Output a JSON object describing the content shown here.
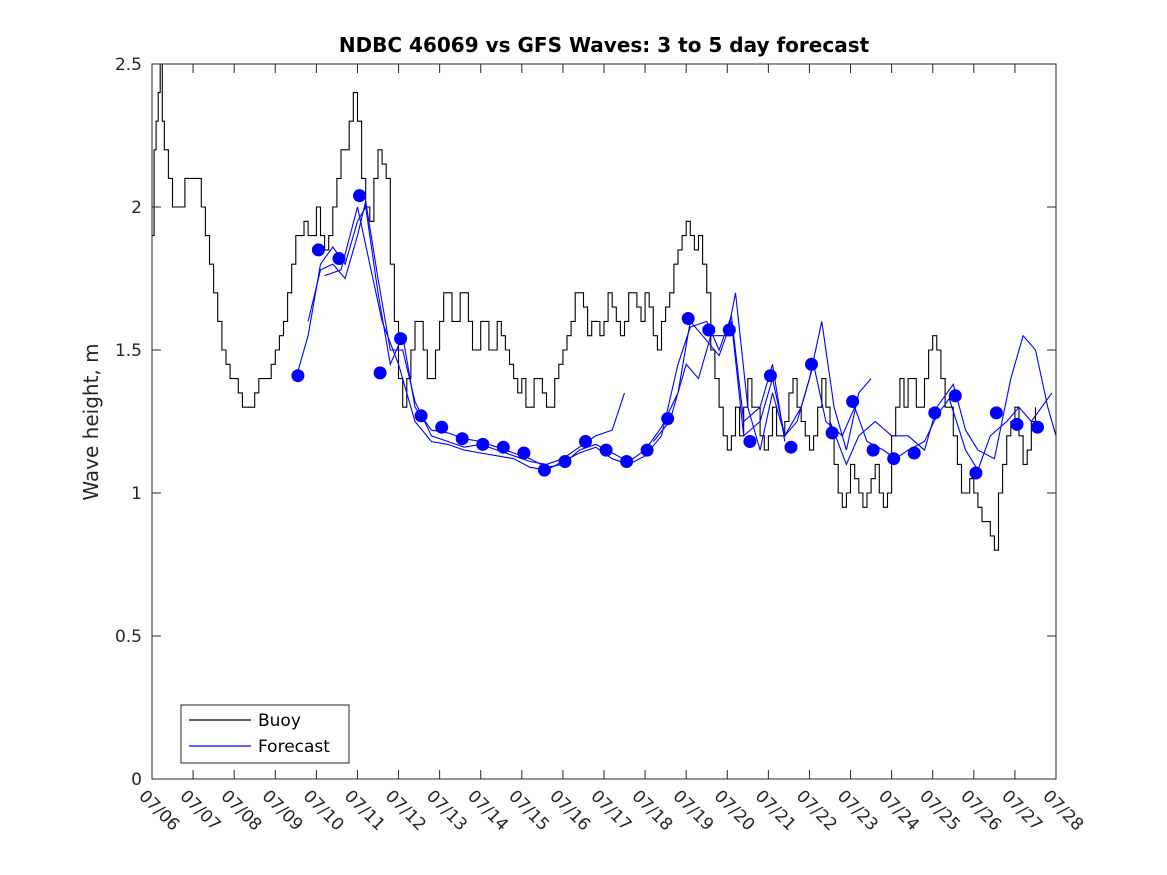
{
  "chart_data": {
    "type": "line",
    "title": "NDBC 46069 vs GFS Waves: 3 to 5 day forecast",
    "xlabel": "",
    "ylabel": "Wave height, m",
    "x_ticks": [
      "07/06",
      "07/07",
      "07/08",
      "07/09",
      "07/10",
      "07/11",
      "07/12",
      "07/13",
      "07/14",
      "07/15",
      "07/16",
      "07/17",
      "07/18",
      "07/19",
      "07/20",
      "07/21",
      "07/22",
      "07/23",
      "07/24",
      "07/25",
      "07/26",
      "07/27",
      "07/28"
    ],
    "y_ticks": [
      "0",
      "0.5",
      "1",
      "1.5",
      "2",
      "2.5"
    ],
    "xlim_days": [
      0,
      22
    ],
    "ylim": [
      0,
      2.5
    ],
    "grid": false,
    "legend_location": "bottom-left",
    "legend": [
      "Buoy",
      "Forecast"
    ],
    "colors": {
      "buoy": "#000000",
      "forecast": "#0000ff"
    },
    "buoy": [
      [
        0.0,
        1.9
      ],
      [
        0.05,
        2.2
      ],
      [
        0.1,
        2.3
      ],
      [
        0.15,
        2.4
      ],
      [
        0.2,
        2.5
      ],
      [
        0.25,
        2.3
      ],
      [
        0.3,
        2.2
      ],
      [
        0.4,
        2.1
      ],
      [
        0.5,
        2.0
      ],
      [
        0.6,
        2.0
      ],
      [
        0.7,
        2.0
      ],
      [
        0.8,
        2.1
      ],
      [
        0.9,
        2.1
      ],
      [
        1.0,
        2.1
      ],
      [
        1.1,
        2.1
      ],
      [
        1.2,
        2.0
      ],
      [
        1.3,
        1.9
      ],
      [
        1.4,
        1.8
      ],
      [
        1.5,
        1.7
      ],
      [
        1.6,
        1.6
      ],
      [
        1.7,
        1.5
      ],
      [
        1.8,
        1.45
      ],
      [
        1.9,
        1.4
      ],
      [
        2.0,
        1.4
      ],
      [
        2.1,
        1.35
      ],
      [
        2.2,
        1.3
      ],
      [
        2.3,
        1.3
      ],
      [
        2.4,
        1.3
      ],
      [
        2.5,
        1.35
      ],
      [
        2.6,
        1.4
      ],
      [
        2.7,
        1.4
      ],
      [
        2.8,
        1.4
      ],
      [
        2.9,
        1.45
      ],
      [
        3.0,
        1.5
      ],
      [
        3.1,
        1.55
      ],
      [
        3.2,
        1.6
      ],
      [
        3.3,
        1.7
      ],
      [
        3.4,
        1.8
      ],
      [
        3.5,
        1.9
      ],
      [
        3.6,
        1.9
      ],
      [
        3.7,
        1.95
      ],
      [
        3.8,
        1.9
      ],
      [
        3.9,
        1.9
      ],
      [
        4.0,
        2.0
      ],
      [
        4.1,
        1.9
      ],
      [
        4.2,
        1.85
      ],
      [
        4.3,
        1.9
      ],
      [
        4.4,
        2.0
      ],
      [
        4.5,
        2.1
      ],
      [
        4.6,
        2.2
      ],
      [
        4.7,
        2.2
      ],
      [
        4.8,
        2.3
      ],
      [
        4.9,
        2.4
      ],
      [
        5.0,
        2.3
      ],
      [
        5.1,
        2.1
      ],
      [
        5.2,
        2.0
      ],
      [
        5.3,
        1.95
      ],
      [
        5.4,
        2.1
      ],
      [
        5.5,
        2.2
      ],
      [
        5.6,
        2.15
      ],
      [
        5.7,
        2.1
      ],
      [
        5.8,
        1.8
      ],
      [
        5.9,
        1.6
      ],
      [
        6.0,
        1.4
      ],
      [
        6.1,
        1.3
      ],
      [
        6.2,
        1.4
      ],
      [
        6.3,
        1.5
      ],
      [
        6.4,
        1.6
      ],
      [
        6.5,
        1.6
      ],
      [
        6.6,
        1.5
      ],
      [
        6.7,
        1.4
      ],
      [
        6.8,
        1.4
      ],
      [
        6.9,
        1.5
      ],
      [
        7.0,
        1.6
      ],
      [
        7.1,
        1.7
      ],
      [
        7.2,
        1.7
      ],
      [
        7.3,
        1.6
      ],
      [
        7.4,
        1.6
      ],
      [
        7.5,
        1.7
      ],
      [
        7.6,
        1.7
      ],
      [
        7.7,
        1.6
      ],
      [
        7.8,
        1.5
      ],
      [
        7.9,
        1.5
      ],
      [
        8.0,
        1.6
      ],
      [
        8.1,
        1.6
      ],
      [
        8.2,
        1.5
      ],
      [
        8.3,
        1.5
      ],
      [
        8.4,
        1.6
      ],
      [
        8.5,
        1.55
      ],
      [
        8.6,
        1.5
      ],
      [
        8.7,
        1.45
      ],
      [
        8.8,
        1.4
      ],
      [
        8.9,
        1.35
      ],
      [
        9.0,
        1.4
      ],
      [
        9.1,
        1.3
      ],
      [
        9.2,
        1.3
      ],
      [
        9.3,
        1.4
      ],
      [
        9.4,
        1.4
      ],
      [
        9.5,
        1.35
      ],
      [
        9.6,
        1.3
      ],
      [
        9.7,
        1.3
      ],
      [
        9.8,
        1.4
      ],
      [
        9.9,
        1.45
      ],
      [
        10.0,
        1.5
      ],
      [
        10.1,
        1.55
      ],
      [
        10.2,
        1.6
      ],
      [
        10.3,
        1.7
      ],
      [
        10.4,
        1.7
      ],
      [
        10.5,
        1.65
      ],
      [
        10.6,
        1.55
      ],
      [
        10.7,
        1.6
      ],
      [
        10.8,
        1.6
      ],
      [
        10.9,
        1.55
      ],
      [
        11.0,
        1.6
      ],
      [
        11.1,
        1.7
      ],
      [
        11.2,
        1.65
      ],
      [
        11.3,
        1.6
      ],
      [
        11.4,
        1.55
      ],
      [
        11.5,
        1.6
      ],
      [
        11.6,
        1.7
      ],
      [
        11.7,
        1.7
      ],
      [
        11.8,
        1.65
      ],
      [
        11.9,
        1.6
      ],
      [
        12.0,
        1.7
      ],
      [
        12.1,
        1.65
      ],
      [
        12.2,
        1.55
      ],
      [
        12.3,
        1.5
      ],
      [
        12.4,
        1.6
      ],
      [
        12.5,
        1.65
      ],
      [
        12.6,
        1.7
      ],
      [
        12.7,
        1.8
      ],
      [
        12.8,
        1.85
      ],
      [
        12.9,
        1.9
      ],
      [
        13.0,
        1.95
      ],
      [
        13.1,
        1.9
      ],
      [
        13.2,
        1.85
      ],
      [
        13.3,
        1.9
      ],
      [
        13.4,
        1.8
      ],
      [
        13.5,
        1.7
      ],
      [
        13.6,
        1.5
      ],
      [
        13.7,
        1.4
      ],
      [
        13.8,
        1.3
      ],
      [
        13.9,
        1.2
      ],
      [
        14.0,
        1.15
      ],
      [
        14.1,
        1.2
      ],
      [
        14.2,
        1.3
      ],
      [
        14.3,
        1.2
      ],
      [
        14.4,
        1.3
      ],
      [
        14.5,
        1.4
      ],
      [
        14.6,
        1.3
      ],
      [
        14.7,
        1.3
      ],
      [
        14.8,
        1.2
      ],
      [
        14.9,
        1.15
      ],
      [
        15.0,
        1.2
      ],
      [
        15.1,
        1.3
      ],
      [
        15.2,
        1.2
      ],
      [
        15.3,
        1.2
      ],
      [
        15.4,
        1.25
      ],
      [
        15.5,
        1.35
      ],
      [
        15.6,
        1.4
      ],
      [
        15.7,
        1.3
      ],
      [
        15.8,
        1.25
      ],
      [
        15.9,
        1.2
      ],
      [
        16.0,
        1.15
      ],
      [
        16.1,
        1.2
      ],
      [
        16.2,
        1.3
      ],
      [
        16.3,
        1.4
      ],
      [
        16.4,
        1.3
      ],
      [
        16.5,
        1.2
      ],
      [
        16.6,
        1.1
      ],
      [
        16.7,
        1.0
      ],
      [
        16.8,
        0.95
      ],
      [
        16.9,
        1.0
      ],
      [
        17.0,
        1.1
      ],
      [
        17.1,
        1.05
      ],
      [
        17.2,
        1.0
      ],
      [
        17.3,
        0.95
      ],
      [
        17.4,
        1.0
      ],
      [
        17.5,
        1.05
      ],
      [
        17.6,
        1.1
      ],
      [
        17.7,
        1.0
      ],
      [
        17.8,
        0.95
      ],
      [
        17.9,
        1.0
      ],
      [
        18.0,
        1.2
      ],
      [
        18.1,
        1.3
      ],
      [
        18.2,
        1.4
      ],
      [
        18.3,
        1.3
      ],
      [
        18.4,
        1.4
      ],
      [
        18.5,
        1.4
      ],
      [
        18.6,
        1.3
      ],
      [
        18.7,
        1.3
      ],
      [
        18.8,
        1.4
      ],
      [
        18.9,
        1.5
      ],
      [
        19.0,
        1.55
      ],
      [
        19.1,
        1.5
      ],
      [
        19.2,
        1.4
      ],
      [
        19.3,
        1.3
      ],
      [
        19.4,
        1.3
      ],
      [
        19.5,
        1.2
      ],
      [
        19.6,
        1.1
      ],
      [
        19.7,
        1.0
      ],
      [
        19.8,
        1.0
      ],
      [
        19.9,
        1.05
      ],
      [
        20.0,
        1.0
      ],
      [
        20.1,
        0.95
      ],
      [
        20.2,
        0.9
      ],
      [
        20.3,
        0.9
      ],
      [
        20.4,
        0.85
      ],
      [
        20.5,
        0.8
      ],
      [
        20.6,
        1.0
      ],
      [
        20.7,
        1.1
      ],
      [
        20.8,
        1.2
      ],
      [
        20.9,
        1.25
      ],
      [
        21.0,
        1.3
      ],
      [
        21.1,
        1.2
      ],
      [
        21.2,
        1.1
      ],
      [
        21.3,
        1.15
      ],
      [
        21.4,
        1.25
      ],
      [
        21.5,
        1.3
      ]
    ],
    "forecast_markers": [
      [
        3.55,
        1.41
      ],
      [
        4.05,
        1.85
      ],
      [
        4.55,
        1.82
      ],
      [
        5.05,
        2.04
      ],
      [
        5.55,
        1.42
      ],
      [
        6.05,
        1.54
      ],
      [
        6.55,
        1.27
      ],
      [
        7.05,
        1.23
      ],
      [
        7.55,
        1.19
      ],
      [
        8.05,
        1.17
      ],
      [
        8.55,
        1.16
      ],
      [
        9.05,
        1.14
      ],
      [
        9.55,
        1.08
      ],
      [
        10.05,
        1.11
      ],
      [
        10.55,
        1.18
      ],
      [
        11.05,
        1.15
      ],
      [
        11.55,
        1.11
      ],
      [
        12.05,
        1.15
      ],
      [
        12.55,
        1.26
      ],
      [
        13.05,
        1.61
      ],
      [
        13.55,
        1.57
      ],
      [
        14.05,
        1.57
      ],
      [
        14.55,
        1.18
      ],
      [
        15.05,
        1.41
      ],
      [
        15.55,
        1.16
      ],
      [
        16.05,
        1.45
      ],
      [
        16.55,
        1.21
      ],
      [
        17.05,
        1.32
      ],
      [
        17.55,
        1.15
      ],
      [
        18.05,
        1.12
      ],
      [
        18.55,
        1.14
      ],
      [
        19.05,
        1.28
      ],
      [
        19.55,
        1.34
      ],
      [
        20.05,
        1.07
      ],
      [
        20.55,
        1.28
      ],
      [
        21.05,
        1.24
      ],
      [
        21.55,
        1.23
      ]
    ],
    "forecast_lines": [
      [
        [
          3.5,
          1.4
        ],
        [
          3.8,
          1.55
        ],
        [
          4.1,
          1.8
        ],
        [
          4.4,
          1.86
        ],
        [
          4.7,
          1.8
        ],
        [
          5.0,
          1.95
        ],
        [
          5.2,
          2.0
        ],
        [
          5.5,
          1.7
        ],
        [
          5.8,
          1.45
        ],
        [
          6.1,
          1.55
        ],
        [
          6.4,
          1.3
        ],
        [
          6.8,
          1.22
        ],
        [
          7.2,
          1.21
        ],
        [
          7.6,
          1.19
        ],
        [
          8.0,
          1.18
        ],
        [
          8.4,
          1.16
        ],
        [
          8.8,
          1.14
        ],
        [
          9.2,
          1.12
        ],
        [
          9.6,
          1.09
        ],
        [
          10.0,
          1.1
        ],
        [
          10.4,
          1.15
        ],
        [
          10.8,
          1.17
        ],
        [
          11.2,
          1.14
        ],
        [
          11.6,
          1.11
        ],
        [
          12.0,
          1.15
        ],
        [
          12.4,
          1.23
        ],
        [
          12.8,
          1.35
        ],
        [
          13.1,
          1.6
        ],
        [
          13.4,
          1.55
        ],
        [
          13.8,
          1.48
        ],
        [
          14.1,
          1.6
        ],
        [
          14.4,
          1.2
        ],
        [
          14.8,
          1.25
        ],
        [
          15.1,
          1.4
        ],
        [
          15.4,
          1.2
        ],
        [
          15.8,
          1.3
        ],
        [
          16.1,
          1.45
        ],
        [
          16.4,
          1.25
        ],
        [
          16.8,
          1.2
        ],
        [
          17.1,
          1.3
        ],
        [
          17.4,
          1.18
        ],
        [
          17.8,
          1.15
        ],
        [
          18.1,
          1.12
        ],
        [
          18.4,
          1.15
        ],
        [
          18.8,
          1.18
        ],
        [
          19.1,
          1.27
        ],
        [
          19.4,
          1.33
        ],
        [
          19.8,
          1.15
        ],
        [
          20.1,
          1.08
        ],
        [
          20.4,
          1.2
        ],
        [
          20.8,
          1.25
        ],
        [
          21.1,
          1.3
        ],
        [
          21.4,
          1.25
        ],
        [
          21.9,
          1.35
        ]
      ],
      [
        [
          3.8,
          1.6
        ],
        [
          4.1,
          1.78
        ],
        [
          4.4,
          1.8
        ],
        [
          4.7,
          1.75
        ],
        [
          5.0,
          1.9
        ],
        [
          5.2,
          2.02
        ],
        [
          5.5,
          1.75
        ],
        [
          5.8,
          1.5
        ],
        [
          6.1,
          1.5
        ],
        [
          6.4,
          1.32
        ],
        [
          6.8,
          1.2
        ],
        [
          7.2,
          1.18
        ],
        [
          7.6,
          1.16
        ],
        [
          8.0,
          1.17
        ],
        [
          8.4,
          1.15
        ],
        [
          8.8,
          1.13
        ],
        [
          9.2,
          1.11
        ],
        [
          9.6,
          1.1
        ],
        [
          10.0,
          1.12
        ],
        [
          10.4,
          1.16
        ],
        [
          10.8,
          1.2
        ],
        [
          11.2,
          1.22
        ],
        [
          11.5,
          1.35
        ]
      ],
      [
        [
          4.2,
          1.76
        ],
        [
          4.6,
          1.78
        ],
        [
          5.0,
          2.0
        ],
        [
          5.3,
          1.8
        ],
        [
          5.6,
          1.6
        ],
        [
          6.0,
          1.45
        ],
        [
          6.4,
          1.25
        ],
        [
          6.8,
          1.18
        ],
        [
          7.2,
          1.17
        ],
        [
          7.6,
          1.15
        ],
        [
          8.0,
          1.14
        ],
        [
          8.4,
          1.13
        ],
        [
          8.8,
          1.12
        ],
        [
          9.2,
          1.09
        ],
        [
          9.6,
          1.08
        ],
        [
          10.0,
          1.11
        ],
        [
          10.4,
          1.14
        ],
        [
          10.8,
          1.16
        ],
        [
          11.2,
          1.12
        ],
        [
          11.6,
          1.1
        ],
        [
          12.0,
          1.13
        ],
        [
          12.4,
          1.2
        ],
        [
          12.8,
          1.45
        ],
        [
          13.1,
          1.58
        ],
        [
          13.5,
          1.6
        ],
        [
          13.8,
          1.5
        ],
        [
          14.1,
          1.62
        ],
        [
          14.4,
          1.25
        ],
        [
          14.8,
          1.3
        ],
        [
          15.1,
          1.45
        ],
        [
          15.4,
          1.18
        ]
      ],
      [
        [
          12.2,
          1.18
        ],
        [
          12.6,
          1.25
        ],
        [
          13.0,
          1.45
        ],
        [
          13.3,
          1.4
        ],
        [
          13.6,
          1.55
        ],
        [
          14.0,
          1.55
        ],
        [
          14.2,
          1.7
        ],
        [
          14.5,
          1.3
        ],
        [
          14.8,
          1.15
        ],
        [
          15.1,
          1.35
        ],
        [
          15.4,
          1.2
        ],
        [
          15.7,
          1.25
        ],
        [
          16.0,
          1.4
        ],
        [
          16.3,
          1.6
        ],
        [
          16.6,
          1.3
        ],
        [
          16.9,
          1.15
        ],
        [
          17.2,
          1.35
        ],
        [
          17.5,
          1.4
        ]
      ],
      [
        [
          16.5,
          1.25
        ],
        [
          16.9,
          1.1
        ],
        [
          17.2,
          1.2
        ],
        [
          17.6,
          1.25
        ],
        [
          18.0,
          1.2
        ],
        [
          18.4,
          1.2
        ],
        [
          18.8,
          1.15
        ],
        [
          19.1,
          1.3
        ],
        [
          19.5,
          1.38
        ],
        [
          19.8,
          1.22
        ],
        [
          20.1,
          1.15
        ],
        [
          20.5,
          1.12
        ],
        [
          20.9,
          1.4
        ],
        [
          21.2,
          1.55
        ],
        [
          21.5,
          1.5
        ],
        [
          21.8,
          1.3
        ],
        [
          22.0,
          1.2
        ]
      ]
    ]
  }
}
